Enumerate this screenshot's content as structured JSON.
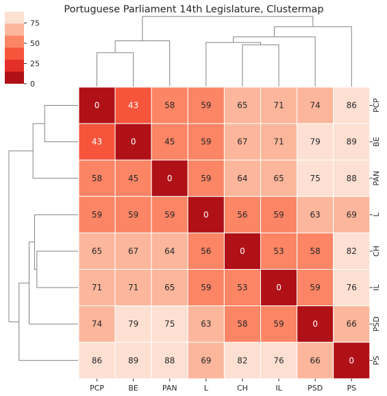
{
  "chart_data": {
    "type": "heatmap",
    "title": "Portuguese Parliament 14th Legislature, Clustermap",
    "row_labels": [
      "PCP",
      "BE",
      "PAN",
      "L",
      "CH",
      "IL",
      "PSD",
      "PS"
    ],
    "col_labels": [
      "PCP",
      "BE",
      "PAN",
      "L",
      "CH",
      "IL",
      "PSD",
      "PS"
    ],
    "values": [
      [
        0,
        43,
        58,
        59,
        65,
        71,
        74,
        86
      ],
      [
        43,
        0,
        45,
        59,
        67,
        71,
        79,
        89
      ],
      [
        58,
        45,
        0,
        59,
        64,
        65,
        75,
        88
      ],
      [
        59,
        59,
        59,
        0,
        56,
        59,
        63,
        69
      ],
      [
        65,
        67,
        64,
        56,
        0,
        53,
        58,
        82
      ],
      [
        71,
        71,
        65,
        59,
        53,
        0,
        59,
        76
      ],
      [
        74,
        79,
        75,
        63,
        58,
        59,
        0,
        66
      ],
      [
        86,
        89,
        88,
        69,
        82,
        76,
        66,
        0
      ]
    ],
    "colorbar": {
      "ticks": [
        "0",
        "25",
        "50",
        "75"
      ],
      "tick_values": [
        0,
        25,
        50,
        75
      ],
      "range": [
        0,
        89
      ],
      "bins": 6,
      "colors": [
        "#af1117",
        "#e32f27",
        "#f6553c",
        "#fc8565",
        "#fcb69b",
        "#fee0d2"
      ]
    },
    "dendrogram": {
      "linkage": [
        {
          "a": "PCP",
          "b": "BE",
          "height": 43
        },
        {
          "a": "CH",
          "b": "IL",
          "height": 53
        },
        {
          "a": "L",
          "b": "CH,IL",
          "height": 56
        },
        {
          "a": "PCP,BE",
          "b": "PAN",
          "height": 58
        },
        {
          "a": "L,CH,IL",
          "b": "PSD",
          "height": 63
        },
        {
          "a": "L,CH,IL,PSD",
          "b": "PS",
          "height": 76
        },
        {
          "a": "PCP,BE,PAN",
          "b": "L,CH,IL,PSD,PS",
          "height": 89
        }
      ],
      "line_color": "#808080"
    },
    "colors": {
      "text_light": "#ffffff",
      "text_dark": "#262626",
      "tick": "#262626"
    }
  }
}
